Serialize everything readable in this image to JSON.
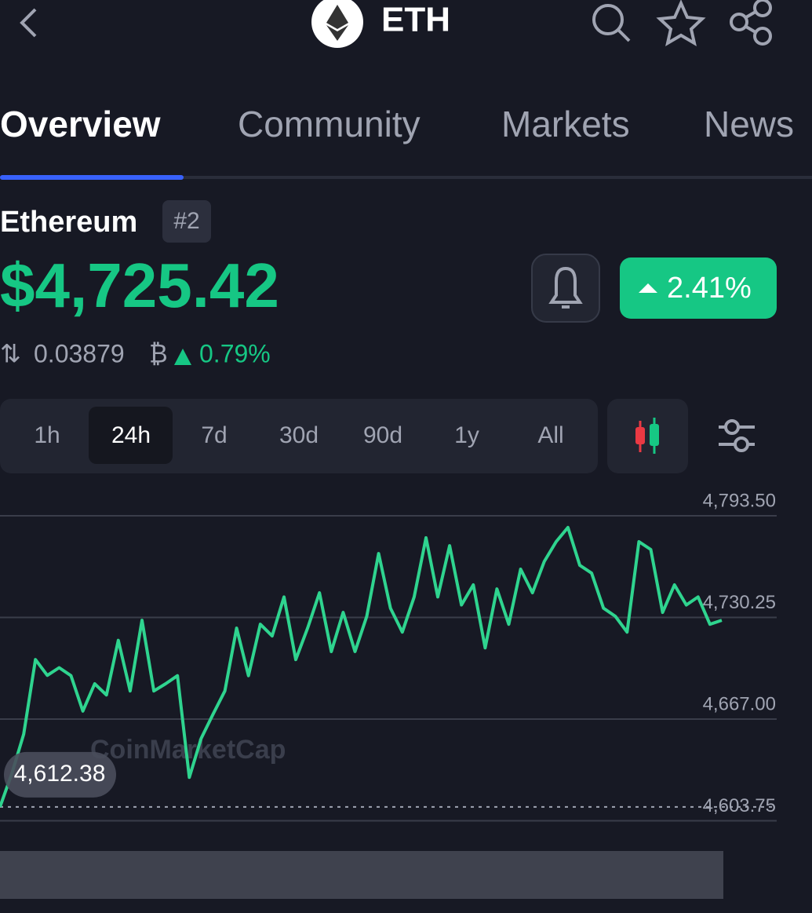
{
  "header": {
    "symbol": "ETH"
  },
  "tabs": [
    "Overview",
    "Community",
    "Markets",
    "News"
  ],
  "coin": {
    "name": "Ethereum",
    "rank": "#2",
    "price": "$4,725.42",
    "change": "2.41%",
    "btc_price": "0.03879",
    "btc_unit": "₿",
    "btc_change": "0.79%"
  },
  "ranges": [
    "1h",
    "24h",
    "7d",
    "30d",
    "90d",
    "1y",
    "All"
  ],
  "chart_data": {
    "type": "line",
    "color": "#2fd48f",
    "watermark": "CoinMarketCap",
    "values": [
      4612.38,
      4633.1,
      4657.6,
      4704,
      4694.2,
      4699,
      4694,
      4672,
      4689,
      4682,
      4716,
      4684.5,
      4728.5,
      4684.5,
      4689,
      4694,
      4630.7,
      4655,
      4670,
      4684.5,
      4723.6,
      4694,
      4726,
      4718.7,
      4743,
      4704,
      4723.6,
      4745.6,
      4709,
      4733.4,
      4709,
      4731,
      4770,
      4736,
      4721.1,
      4743,
      4779.8,
      4743,
      4774.9,
      4738,
      4750.5,
      4711.3,
      4748,
      4726,
      4760.3,
      4745.6,
      4765.1,
      4777.4,
      4786.2,
      4762.7,
      4757.8,
      4736,
      4731,
      4721.1,
      4777.4,
      4772.5,
      4733.4,
      4750.5,
      4738,
      4743,
      4726,
      4728.5
    ],
    "reference_line": {
      "value": 4612.38,
      "label": "4,612.38"
    },
    "ylim": [
      4603.75,
      4793.5
    ],
    "yticks": [
      {
        "value": 4603.75,
        "label": "4,603.75"
      },
      {
        "value": 4667,
        "label": "4,667.00"
      },
      {
        "value": 4730.25,
        "label": "4,730.25"
      },
      {
        "value": 4793.5,
        "label": "4,793.50"
      }
    ],
    "grid": true
  }
}
